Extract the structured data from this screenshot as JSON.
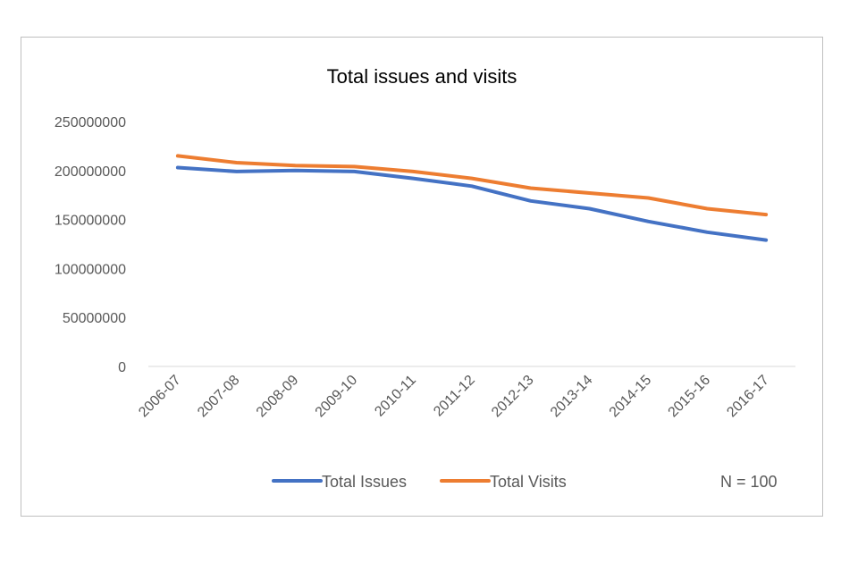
{
  "chart_data": {
    "type": "line",
    "title": "Total issues and visits",
    "xlabel": "",
    "ylabel": "",
    "categories": [
      "2006-07",
      "2007-08",
      "2008-09",
      "2009-10",
      "2010-11",
      "2011-12",
      "2012-13",
      "2013-14",
      "2014-15",
      "2015-16",
      "2016-17"
    ],
    "series": [
      {
        "name": "Total Issues",
        "color": "#4472C4",
        "values": [
          203000000,
          199000000,
          200000000,
          199000000,
          192000000,
          184000000,
          169000000,
          161000000,
          148000000,
          137000000,
          129000000
        ]
      },
      {
        "name": "Total Visits",
        "color": "#ED7D31",
        "values": [
          215000000,
          208000000,
          205000000,
          204000000,
          199000000,
          192000000,
          182000000,
          177000000,
          172000000,
          161000000,
          155000000
        ]
      }
    ],
    "yticks": [
      "0",
      "50000000",
      "100000000",
      "150000000",
      "200000000",
      "250000000"
    ],
    "ylim": [
      0,
      250000000
    ],
    "grid": false,
    "legend": "bottom",
    "note": "N = 100"
  }
}
